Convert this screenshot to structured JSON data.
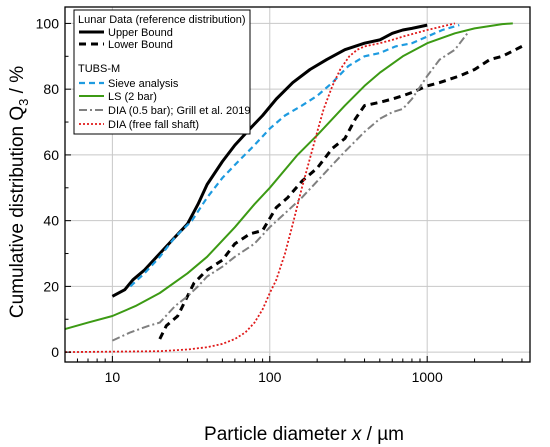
{
  "chart_data": {
    "type": "line",
    "xlabel_main": "Particle diameter ",
    "xlabel_var": "x",
    "xlabel_unit": " / µm",
    "ylabel_main": "Cumulative distribution Q",
    "ylabel_sub": "3",
    "ylabel_unit": " / %",
    "x_scale": "log",
    "xlim": [
      5,
      4500
    ],
    "ylim": [
      -3,
      105
    ],
    "x_ticks": [
      10,
      100,
      1000
    ],
    "x_tick_labels": [
      "10",
      "100",
      "1000"
    ],
    "y_ticks": [
      0,
      20,
      40,
      60,
      80,
      100
    ],
    "y_tick_labels": [
      "0",
      "20",
      "40",
      "60",
      "80",
      "100"
    ],
    "grid": true,
    "legend_position": "top-left",
    "legend_group1_title": "Lunar Data (reference distribution)",
    "legend_group2_title": "TUBS-M",
    "series": [
      {
        "name": "Upper Bound",
        "color": "#000000",
        "dash": "solid",
        "width": 3.0,
        "x": [
          10,
          12,
          13.5,
          16,
          20,
          25,
          30,
          35,
          40,
          50,
          60,
          75,
          90,
          110,
          140,
          180,
          230,
          300,
          400,
          500,
          600,
          700,
          800,
          1000
        ],
        "y": [
          17,
          19,
          22,
          25,
          30,
          35,
          39,
          45,
          51,
          58,
          63,
          68,
          72,
          77,
          82,
          86,
          89,
          92,
          94,
          95,
          97,
          98,
          98.5,
          99.5
        ]
      },
      {
        "name": "Lower Bound",
        "color": "#000000",
        "dash": "7,5",
        "width": 3.0,
        "x": [
          20,
          22,
          26,
          33,
          40,
          50,
          60,
          75,
          90,
          110,
          130,
          160,
          200,
          250,
          300,
          350,
          400,
          500,
          600,
          700,
          800,
          1000,
          1200,
          1600,
          2000,
          2500,
          3000,
          4000
        ],
        "y": [
          4,
          8,
          11,
          21,
          25,
          28,
          33,
          36,
          37,
          44,
          47,
          52,
          56,
          62,
          65,
          71,
          75,
          76,
          77,
          78,
          79,
          81,
          82,
          84,
          86,
          89,
          90,
          93
        ]
      },
      {
        "name": "Sieve analysis",
        "color": "#1e9be0",
        "dash": "6,4",
        "width": 2.2,
        "x": [
          13,
          16,
          20,
          25,
          32,
          40,
          50,
          63,
          80,
          100,
          125,
          160,
          200,
          250,
          315,
          400,
          500,
          630,
          800,
          1000,
          1250,
          1600
        ],
        "y": [
          20,
          24,
          29,
          35,
          40,
          47,
          53,
          58,
          63,
          68,
          72,
          75,
          78,
          82,
          87,
          90,
          91,
          93,
          94,
          96,
          98,
          99.5
        ]
      },
      {
        "name": "LS (2 bar)",
        "color": "#3c9a14",
        "dash": "solid",
        "width": 2.0,
        "x": [
          5,
          7,
          10,
          14,
          20,
          30,
          40,
          60,
          80,
          100,
          150,
          200,
          300,
          400,
          500,
          700,
          1000,
          1500,
          2000,
          3000,
          3500
        ],
        "y": [
          7,
          9,
          11,
          14,
          18,
          24,
          29,
          38,
          45,
          50,
          60,
          66,
          75,
          81,
          85,
          90,
          94,
          97,
          98.5,
          99.8,
          100
        ]
      },
      {
        "name": "DIA (0.5 bar); Grill et al. 2019",
        "color": "#808080",
        "dash": "8,3,2,3",
        "width": 2.0,
        "x": [
          10,
          13,
          17,
          20,
          25,
          30,
          35,
          40,
          50,
          60,
          80,
          100,
          130,
          160,
          200,
          250,
          300,
          400,
          500,
          600,
          700,
          800,
          1000,
          1200,
          1500,
          1800
        ],
        "y": [
          3.5,
          6,
          8,
          9,
          14,
          17,
          20,
          23,
          26,
          29,
          33,
          38,
          43,
          47,
          52,
          57,
          61,
          67,
          71,
          73,
          74,
          77,
          84,
          89,
          92,
          97
        ]
      },
      {
        "name": "DIA (free fall shaft)",
        "color": "#e01a1a",
        "dash": "2,2",
        "width": 1.8,
        "x": [
          5,
          20,
          30,
          40,
          50,
          60,
          70,
          80,
          90,
          100,
          110,
          125,
          140,
          160,
          180,
          200,
          220,
          250,
          280,
          320,
          360,
          400,
          500,
          600,
          700,
          1000,
          1500
        ],
        "y": [
          0,
          0.3,
          0.8,
          1.5,
          2.5,
          4,
          6,
          9,
          13,
          18,
          22,
          30,
          39,
          50,
          59,
          67,
          74,
          81,
          86,
          90,
          92,
          93,
          94,
          95,
          96,
          98,
          100
        ]
      }
    ]
  }
}
